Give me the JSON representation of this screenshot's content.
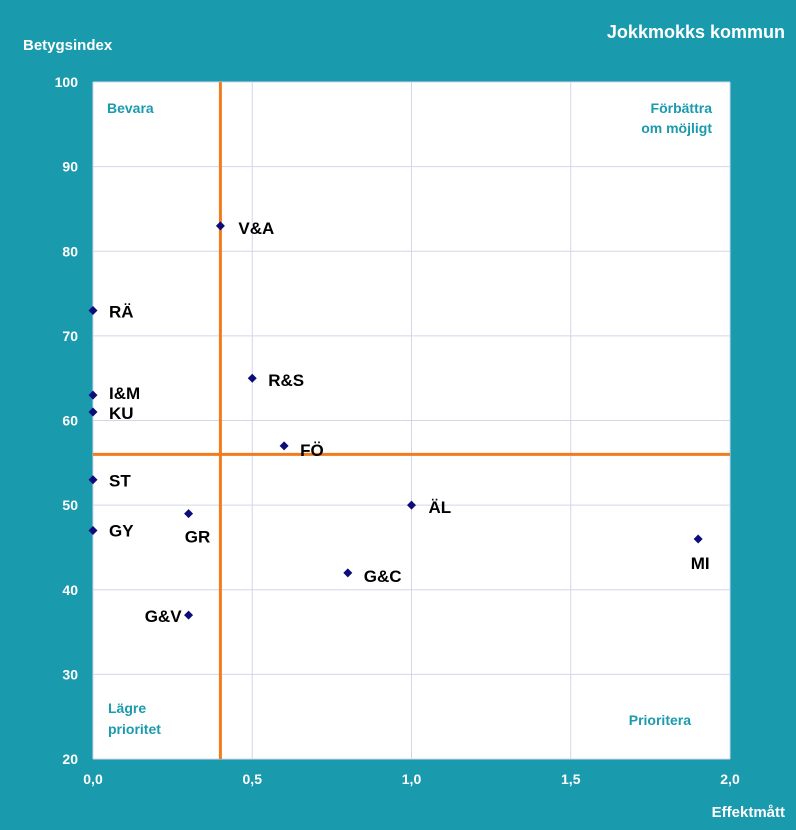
{
  "chart_data": {
    "type": "scatter",
    "title": "Jokkmokks kommun",
    "xlabel": "Effektmått",
    "ylabel": "Betygsindex",
    "xlim": [
      0,
      2
    ],
    "ylim": [
      20,
      100
    ],
    "x_ticks": [
      "0,0",
      "0,5",
      "1,0",
      "1,5",
      "2,0"
    ],
    "y_ticks": [
      "20",
      "30",
      "40",
      "50",
      "60",
      "70",
      "80",
      "90",
      "100"
    ],
    "grid": true,
    "reference_lines": {
      "x": 0.4,
      "y": 56
    },
    "quadrants": {
      "top_left": [
        "Bevara"
      ],
      "top_right": [
        "Förbättra",
        "om möjligt"
      ],
      "bottom_left": [
        "Lägre",
        "prioritet"
      ],
      "bottom_right": [
        "Prioritera"
      ]
    },
    "points": [
      {
        "label": "V&A",
        "x": 0.4,
        "y": 83
      },
      {
        "label": "RÄ",
        "x": 0.0,
        "y": 73
      },
      {
        "label": "R&S",
        "x": 0.5,
        "y": 65
      },
      {
        "label": "I&M",
        "x": 0.0,
        "y": 63
      },
      {
        "label": "KU",
        "x": 0.0,
        "y": 61
      },
      {
        "label": "FÖ",
        "x": 0.6,
        "y": 57
      },
      {
        "label": "ST",
        "x": 0.0,
        "y": 53
      },
      {
        "label": "ÄL",
        "x": 1.0,
        "y": 50
      },
      {
        "label": "GR",
        "x": 0.3,
        "y": 49
      },
      {
        "label": "GY",
        "x": 0.0,
        "y": 47
      },
      {
        "label": "MI",
        "x": 1.9,
        "y": 46
      },
      {
        "label": "G&C",
        "x": 0.8,
        "y": 42
      },
      {
        "label": "G&V",
        "x": 0.3,
        "y": 37
      }
    ]
  },
  "colors": {
    "frame": "#1a9aad",
    "plot_bg": "#ffffff",
    "grid": "#d4d4ec",
    "reference_line": "#f07c1e",
    "marker": "#0c0c7a",
    "quadrant_text": "#1a9aad"
  }
}
